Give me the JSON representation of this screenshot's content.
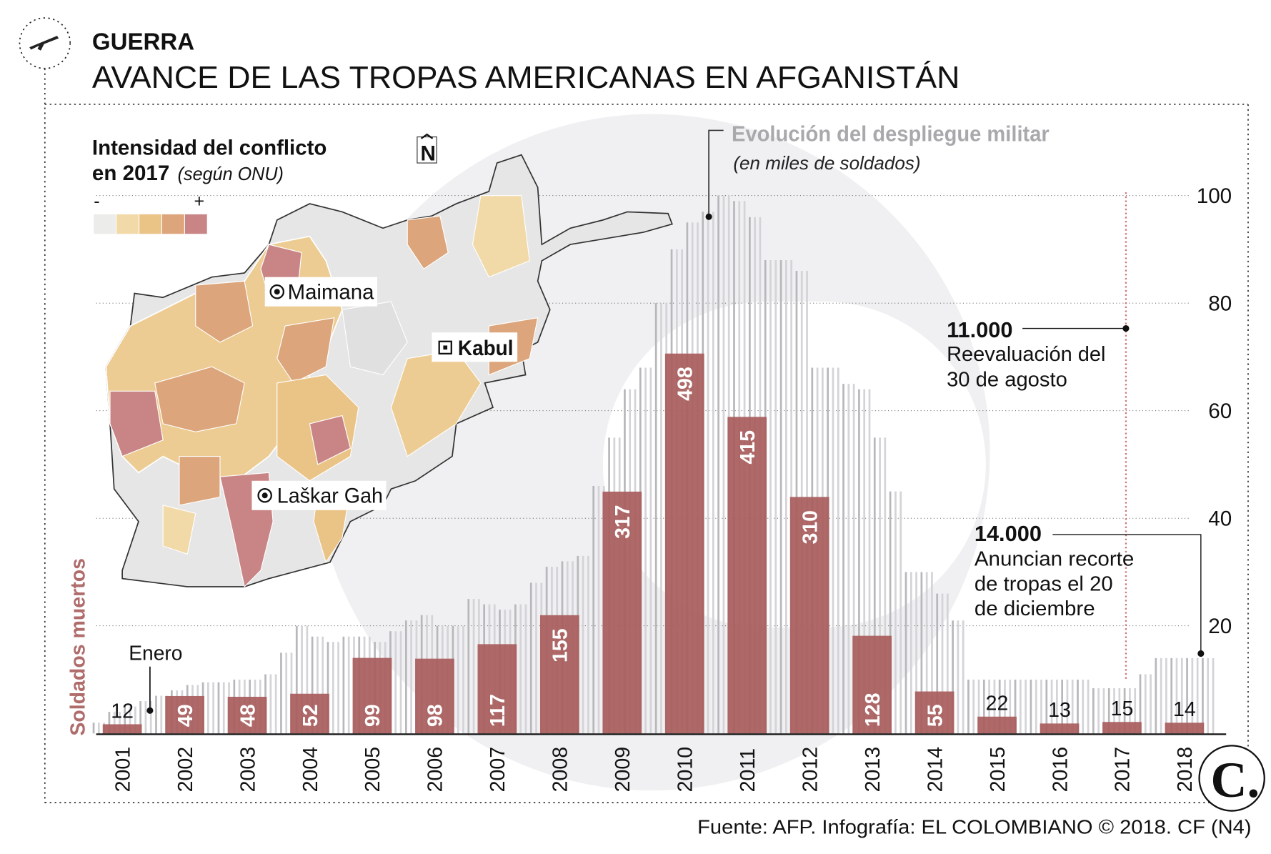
{
  "header": {
    "section": "GUERRA",
    "title": "AVANCE DE LAS TROPAS AMERICANAS EN AFGANISTÁN"
  },
  "map": {
    "legend_title_1": "Intensidad del conflicto",
    "legend_title_2": "en 2017",
    "legend_title_note": "(según ONU)",
    "legend_min": "-",
    "legend_max": "+",
    "scale_colors": [
      "#ececea",
      "#f2d9a8",
      "#eac487",
      "#dca57b",
      "#c98585"
    ],
    "north": "N",
    "cities": [
      "Maimana",
      "Kabul",
      "Laškar Gah"
    ]
  },
  "chart_data": {
    "type": "bar",
    "title": "Evolución del despliegue militar",
    "subtitle": "(en miles de soldados)",
    "ylabel_left": "Soldados muertos",
    "categories": [
      "2001",
      "2002",
      "2003",
      "2004",
      "2005",
      "2006",
      "2007",
      "2008",
      "2009",
      "2010",
      "2011",
      "2012",
      "2013",
      "2014",
      "2015",
      "2016",
      "2017",
      "2018"
    ],
    "series": [
      {
        "name": "Soldados muertos",
        "values": [
          12,
          49,
          48,
          52,
          99,
          98,
          117,
          155,
          317,
          498,
          415,
          310,
          128,
          55,
          22,
          13,
          15,
          14
        ],
        "color": "#a85c5c"
      },
      {
        "name": "Evolución del despliegue militar",
        "unit": "miles de soldados",
        "color": "#c8c8c8",
        "quarterly": [
          [
            2,
            4,
            5,
            6
          ],
          [
            7,
            8,
            9,
            9.5
          ],
          [
            9.5,
            10,
            10,
            11
          ],
          [
            15,
            20,
            18,
            17
          ],
          [
            18,
            18,
            17,
            19
          ],
          [
            21,
            22,
            20,
            20
          ],
          [
            25,
            24,
            23,
            24
          ],
          [
            28,
            31,
            32,
            33
          ],
          [
            46,
            55,
            64,
            68
          ],
          [
            80,
            90,
            95,
            97
          ],
          [
            100,
            99,
            96,
            88
          ],
          [
            88,
            86,
            68,
            68
          ],
          [
            65,
            64,
            55,
            45
          ],
          [
            30,
            30,
            26,
            21
          ],
          [
            10,
            10,
            10,
            10
          ],
          [
            10,
            10,
            10,
            10
          ],
          [
            8.4,
            8.4,
            8.4,
            11
          ],
          [
            14,
            14,
            14,
            14
          ]
        ]
      }
    ],
    "yaxis_right": {
      "ticks": [
        20,
        40,
        60,
        80,
        100
      ],
      "range": [
        0,
        100
      ]
    },
    "grid": true,
    "annotations": [
      {
        "label": "Enero"
      },
      {
        "value": "11.000",
        "text": [
          "Reevaluación del",
          "30 de agosto"
        ]
      },
      {
        "value": "14.000",
        "text": [
          "Anuncian recorte",
          "de tropas el 20",
          "de diciembre"
        ]
      }
    ]
  },
  "footer": {
    "source": "Fuente: AFP. Infografía: EL COLOMBIANO © 2018. CF (N4)",
    "logo": "C."
  }
}
